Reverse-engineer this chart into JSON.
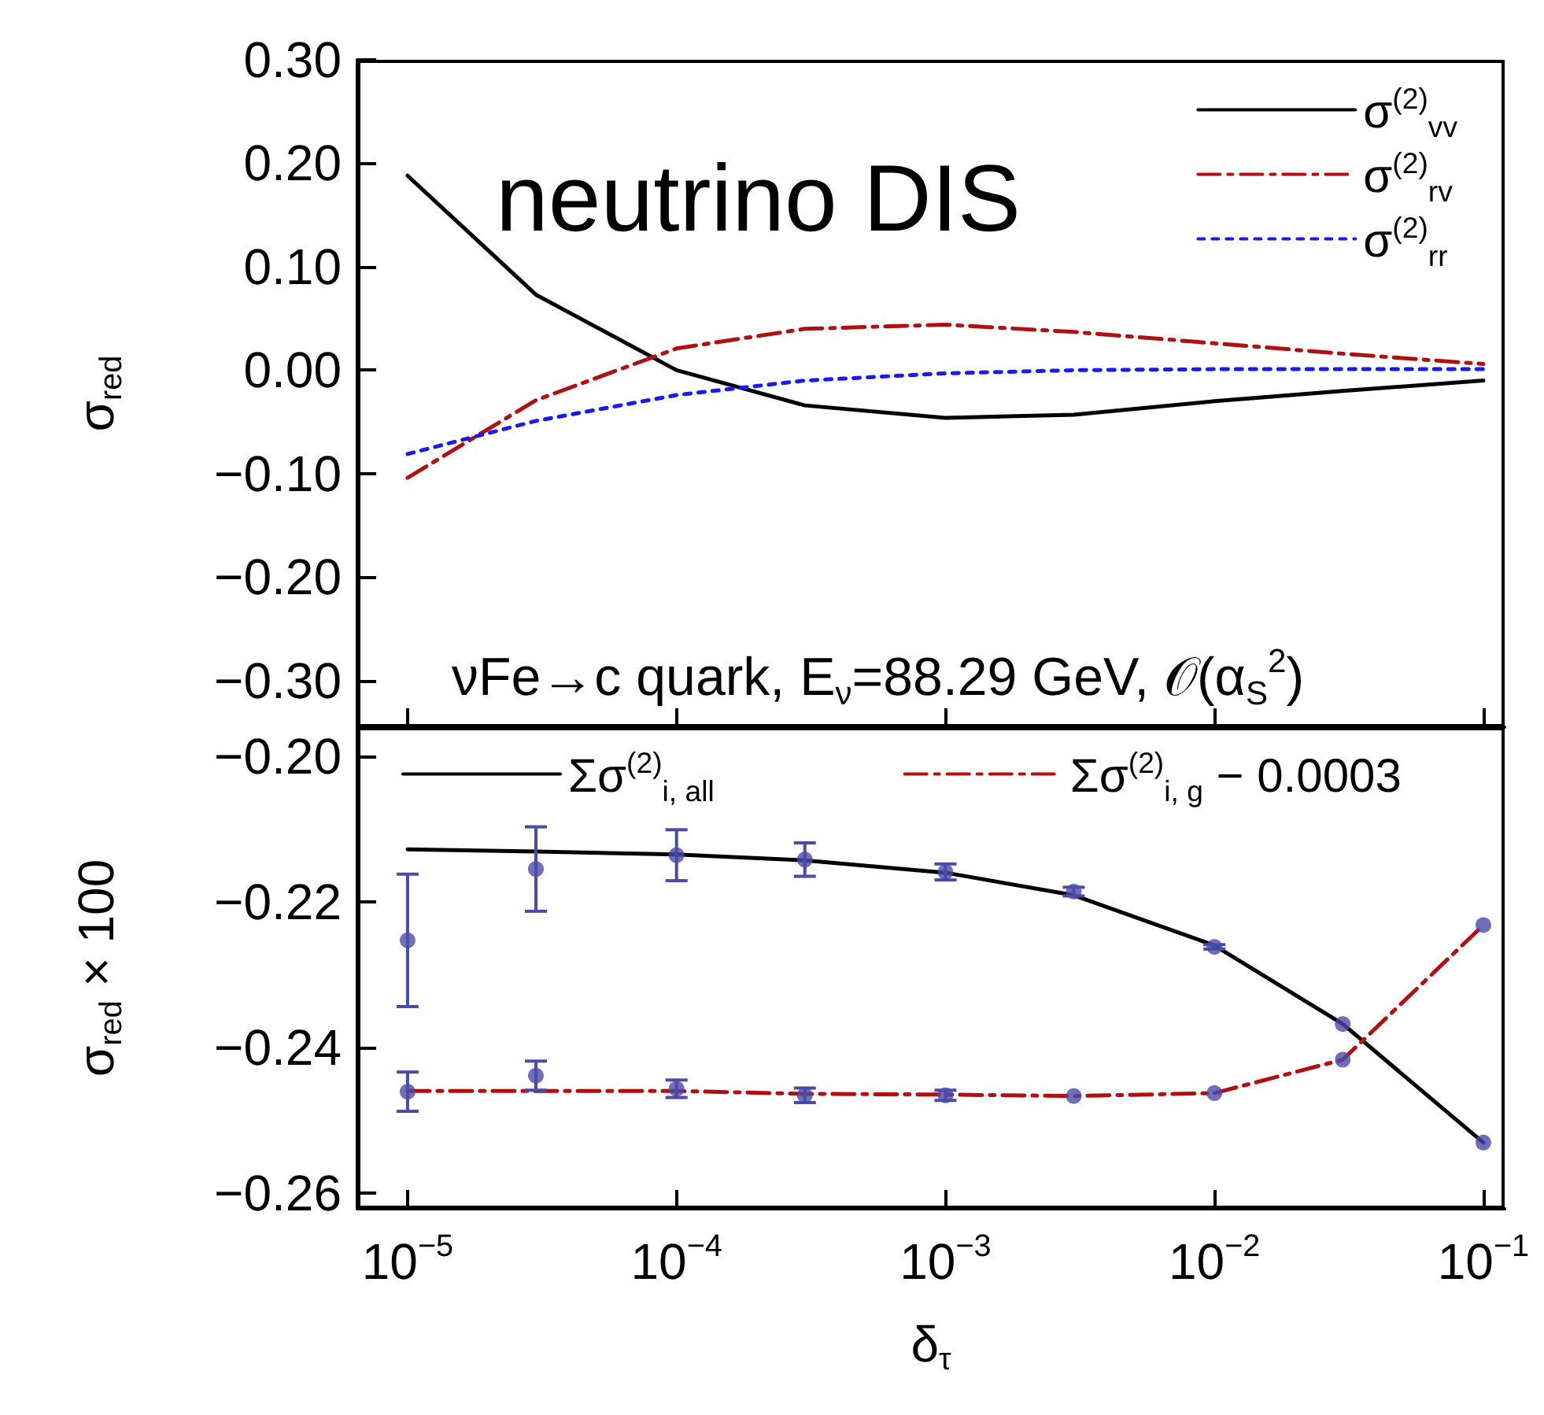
{
  "chart_data": [
    {
      "type": "line",
      "ylabel": "σ$_{red}$",
      "annotations": [
        "neutrino DIS",
        "νFe→c quark, E$_{ν}$=88.29 GeV, 𝒪(α$_{S}$$^{2}$)"
      ],
      "x": [
        1e-05,
        3e-05,
        0.0001,
        0.0003,
        0.001,
        0.003,
        0.01,
        0.03,
        0.1
      ],
      "xlim": [
        6.5e-06,
        0.12
      ],
      "xticks": [
        {
          "value": 1e-05,
          "label": null
        },
        {
          "value": 0.0001,
          "label": null
        },
        {
          "value": 0.001,
          "label": null
        },
        {
          "value": 0.01,
          "label": null
        },
        {
          "value": 0.1,
          "label": null
        }
      ],
      "ylim": [
        -0.345,
        0.3
      ],
      "yticks": [
        {
          "value": 0.3,
          "label": "0.30"
        },
        {
          "value": 0.2,
          "label": "0.20"
        },
        {
          "value": 0.1,
          "label": "0.10"
        },
        {
          "value": 0,
          "label": "0.00"
        },
        {
          "value": -0.1,
          "label": "−0.10"
        },
        {
          "value": -0.2,
          "label": "−0.20"
        },
        {
          "value": -0.3,
          "label": "−0.30"
        }
      ],
      "log": "x",
      "tick_labels": "y",
      "legend": "top right",
      "grid": false,
      "series": [
        {
          "name": "σ$^{(2)}$$_{vv}$",
          "color": "#000000",
          "line_style": "solid",
          "values": [
            0.188,
            0.073,
            0,
            -0.034,
            -0.046,
            -0.043,
            -0.03,
            -0.02,
            -0.01
          ]
        },
        {
          "name": "σ$^{(2)}$$_{rv}$",
          "color": "#b01010",
          "line_style": "dashdot",
          "values": [
            -0.104,
            -0.029,
            0.021,
            0.04,
            0.044,
            0.037,
            0.026,
            0.016,
            0.006
          ]
        },
        {
          "name": "σ$^{(2)}$$_{rr}$",
          "color": "#1a1aee",
          "line_style": "dotted",
          "values": [
            -0.081,
            -0.049,
            -0.024,
            -0.01,
            -0.003,
            0,
            0.001,
            0.001,
            0.001
          ]
        }
      ]
    },
    {
      "type": "line",
      "ylabel": "σ$_{red}$ × 100",
      "xlabel": "δ$_{τ}$",
      "x": [
        1e-05,
        3e-05,
        0.0001,
        0.0003,
        0.001,
        0.003,
        0.01,
        0.03,
        0.1
      ],
      "xlim": [
        6.5e-06,
        0.12
      ],
      "xticks": [
        {
          "value": 1e-05,
          "label": "10$^{−5}$"
        },
        {
          "value": 0.0001,
          "label": "10$^{−4}$"
        },
        {
          "value": 0.001,
          "label": "10$^{−3}$"
        },
        {
          "value": 0.01,
          "label": "10$^{−2}$"
        },
        {
          "value": 0.1,
          "label": "10$^{−1}$"
        }
      ],
      "ylim": [
        -0.2622,
        -0.196
      ],
      "yticks": [
        {
          "value": -0.2,
          "label": "−0.20"
        },
        {
          "value": -0.22,
          "label": "−0.22"
        },
        {
          "value": -0.24,
          "label": "−0.24"
        },
        {
          "value": -0.26,
          "label": "−0.26"
        }
      ],
      "log": "x",
      "legend": "top",
      "grid": false,
      "series": [
        {
          "name": "Σσ$^{(2)}$$_{i, all}$",
          "color": "#000000",
          "line_style": "solid",
          "values": [
            -0.2128,
            -0.2131,
            -0.2135,
            -0.2143,
            -0.216,
            -0.2191,
            -0.226,
            -0.2368,
            -0.2531
          ]
        },
        {
          "name": "Σσ$^{(2)}$$_{i, g}$ − 0.0003",
          "color": "#b01010",
          "line_style": "dashdot",
          "values": [
            -0.246,
            -0.246,
            -0.246,
            -0.2464,
            -0.2465,
            -0.2467,
            -0.2463,
            -0.2417,
            -0.2232
          ]
        },
        {
          "type": "scatter",
          "color": "#4a4aaa",
          "marker": "circle",
          "values": [
            -0.2253,
            -0.2155,
            -0.2136,
            -0.2142,
            -0.2159,
            -0.2186,
            -0.2262,
            -0.2368,
            -0.2531
          ],
          "errors": [
            0.0091,
            0.0058,
            0.0035,
            0.0023,
            0.0011,
            0.0006,
            0.0003,
            null,
            null
          ]
        },
        {
          "type": "scatter",
          "color": "#4a4aaa",
          "marker": "circle",
          "values": [
            -0.2461,
            -0.2439,
            -0.2457,
            -0.2466,
            -0.2466,
            -0.2467,
            -0.2463,
            -0.2417,
            -0.2232
          ],
          "errors": [
            0.0027,
            0.002,
            0.0012,
            0.001,
            0.0007,
            null,
            null,
            null,
            null
          ]
        }
      ]
    }
  ]
}
